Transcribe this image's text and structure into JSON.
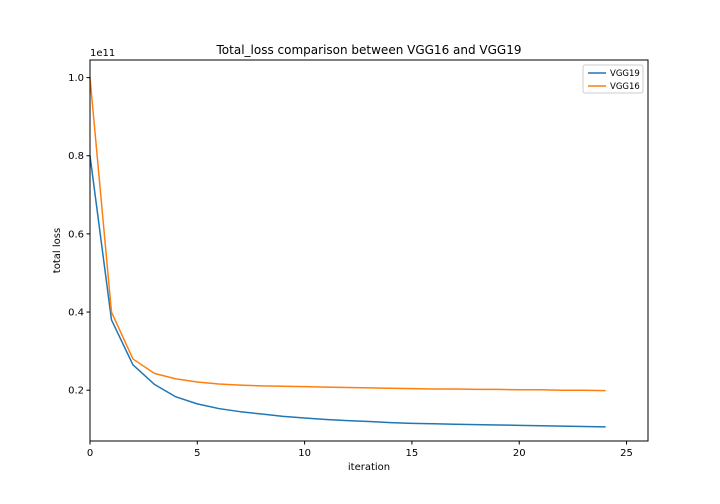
{
  "chart_data": {
    "type": "line",
    "title": "Total_loss comparison between VGG16 and VGG19",
    "xlabel": "iteration",
    "ylabel": "total loss",
    "y_offset_label": "1e11",
    "xlim": [
      0,
      26
    ],
    "ylim": [
      0.07,
      1.045
    ],
    "x_ticks": [
      0,
      5,
      10,
      15,
      20,
      25
    ],
    "y_ticks": [
      0.2,
      0.4,
      0.6,
      0.8,
      1.0
    ],
    "x_tick_labels": [
      "0",
      "5",
      "10",
      "15",
      "20",
      "25"
    ],
    "y_tick_labels": [
      "0.2",
      "0.4",
      "0.6",
      "0.8",
      "1.0"
    ],
    "grid": false,
    "legend_position": "top-right",
    "x": [
      0,
      1,
      2,
      3,
      4,
      5,
      6,
      7,
      8,
      9,
      10,
      11,
      12,
      13,
      14,
      15,
      16,
      17,
      18,
      19,
      20,
      21,
      22,
      23,
      24
    ],
    "series": [
      {
        "name": "VGG19",
        "color": "#1f77b4",
        "values": [
          0.8,
          0.38,
          0.265,
          0.215,
          0.183,
          0.165,
          0.153,
          0.145,
          0.139,
          0.133,
          0.129,
          0.125,
          0.122,
          0.12,
          0.117,
          0.115,
          0.114,
          0.113,
          0.112,
          0.111,
          0.11,
          0.109,
          0.108,
          0.107,
          0.106
        ]
      },
      {
        "name": "VGG16",
        "color": "#ff7f0e",
        "values": [
          1.0,
          0.4,
          0.28,
          0.243,
          0.229,
          0.221,
          0.216,
          0.213,
          0.211,
          0.21,
          0.209,
          0.208,
          0.207,
          0.206,
          0.205,
          0.204,
          0.203,
          0.203,
          0.202,
          0.202,
          0.201,
          0.201,
          0.2,
          0.2,
          0.199
        ]
      }
    ]
  }
}
